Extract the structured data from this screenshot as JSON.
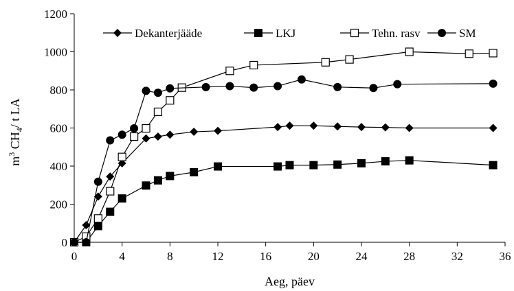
{
  "chart_data": {
    "type": "line",
    "xlabel": "Aeg, päev",
    "ylabel_parts": {
      "prefix": "m",
      "sup": "3",
      "mid": " CH",
      "sub": "4",
      "suffix": "/ t LA"
    },
    "xlim": [
      0,
      36
    ],
    "ylim": [
      0,
      1200
    ],
    "xticks": [
      0,
      4,
      8,
      12,
      16,
      20,
      24,
      28,
      32,
      36
    ],
    "yticks": [
      0,
      200,
      400,
      600,
      800,
      1000,
      1200
    ],
    "legend_position": "top",
    "grid": false,
    "series": [
      {
        "name": "Dekanterjääde",
        "marker": "diamond",
        "x": [
          0,
          1,
          2,
          3,
          4,
          6,
          7,
          8,
          10,
          12,
          17,
          18,
          20,
          22,
          24,
          26,
          28,
          35
        ],
        "y": [
          0,
          90,
          240,
          345,
          415,
          545,
          555,
          565,
          580,
          585,
          605,
          612,
          612,
          608,
          605,
          603,
          600,
          600
        ]
      },
      {
        "name": "LKJ",
        "marker": "square-filled",
        "x": [
          0,
          1,
          2,
          3,
          4,
          6,
          7,
          8,
          10,
          12,
          17,
          18,
          20,
          22,
          24,
          26,
          28,
          35
        ],
        "y": [
          0,
          0,
          85,
          160,
          230,
          298,
          325,
          348,
          368,
          398,
          398,
          405,
          405,
          408,
          415,
          425,
          430,
          405
        ]
      },
      {
        "name": "Tehn. rasv",
        "marker": "square-open",
        "x": [
          0,
          1,
          2,
          3,
          4,
          5,
          6,
          7,
          8,
          9,
          13,
          15,
          21,
          23,
          28,
          33,
          35
        ],
        "y": [
          0,
          30,
          125,
          268,
          448,
          555,
          598,
          685,
          745,
          812,
          900,
          930,
          945,
          960,
          1000,
          990,
          993
        ]
      },
      {
        "name": "SM",
        "marker": "circle",
        "x": [
          0,
          1,
          2,
          3,
          4,
          5,
          6,
          7,
          8,
          11,
          13,
          15,
          17,
          19,
          22,
          25,
          27,
          35
        ],
        "y": [
          0,
          0,
          318,
          535,
          565,
          598,
          795,
          785,
          808,
          815,
          820,
          812,
          820,
          855,
          815,
          810,
          830,
          833
        ]
      }
    ]
  }
}
